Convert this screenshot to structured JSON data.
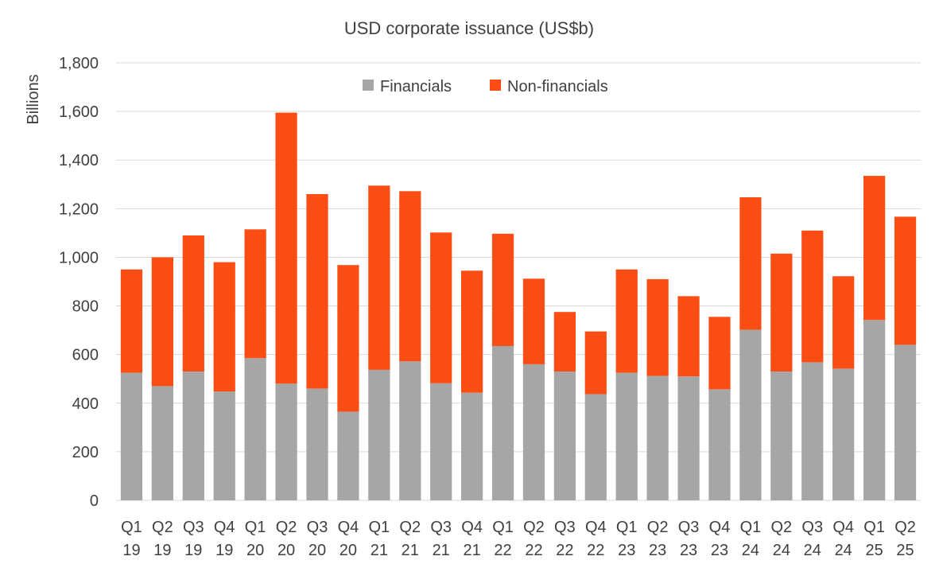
{
  "chart_data": {
    "type": "bar",
    "stacked": true,
    "title": "USD corporate issuance (US$b)",
    "xlabel": "",
    "ylabel": "Billions",
    "ylim": [
      0,
      1800
    ],
    "yticks": [
      0,
      200,
      400,
      600,
      800,
      1000,
      1200,
      1400,
      1600,
      1800
    ],
    "ytick_labels": [
      "0",
      "200",
      "400",
      "600",
      "800",
      "1,000",
      "1,200",
      "1,400",
      "1,600",
      "1,800"
    ],
    "grid": true,
    "legend_position": "top-center",
    "categories": [
      [
        "Q1",
        "19"
      ],
      [
        "Q2",
        "19"
      ],
      [
        "Q3",
        "19"
      ],
      [
        "Q4",
        "19"
      ],
      [
        "Q1",
        "20"
      ],
      [
        "Q2",
        "20"
      ],
      [
        "Q3",
        "20"
      ],
      [
        "Q4",
        "20"
      ],
      [
        "Q1",
        "21"
      ],
      [
        "Q2",
        "21"
      ],
      [
        "Q3",
        "21"
      ],
      [
        "Q4",
        "21"
      ],
      [
        "Q1",
        "22"
      ],
      [
        "Q2",
        "22"
      ],
      [
        "Q3",
        "22"
      ],
      [
        "Q4",
        "22"
      ],
      [
        "Q1",
        "23"
      ],
      [
        "Q2",
        "23"
      ],
      [
        "Q3",
        "23"
      ],
      [
        "Q4",
        "23"
      ],
      [
        "Q1",
        "24"
      ],
      [
        "Q2",
        "24"
      ],
      [
        "Q3",
        "24"
      ],
      [
        "Q4",
        "24"
      ],
      [
        "Q1",
        "25"
      ],
      [
        "Q2",
        "25"
      ]
    ],
    "series": [
      {
        "name": "Financials",
        "color": "#a6a6a6",
        "values": [
          525,
          470,
          530,
          448,
          585,
          480,
          460,
          365,
          537,
          572,
          482,
          443,
          635,
          560,
          530,
          437,
          525,
          512,
          510,
          457,
          702,
          530,
          568,
          542,
          742,
          640
        ]
      },
      {
        "name": "Non-financials",
        "color": "#fc4e14",
        "values": [
          425,
          530,
          560,
          532,
          530,
          1115,
          800,
          603,
          758,
          700,
          620,
          502,
          462,
          352,
          245,
          258,
          425,
          398,
          330,
          298,
          545,
          485,
          542,
          380,
          593,
          527
        ]
      }
    ]
  }
}
